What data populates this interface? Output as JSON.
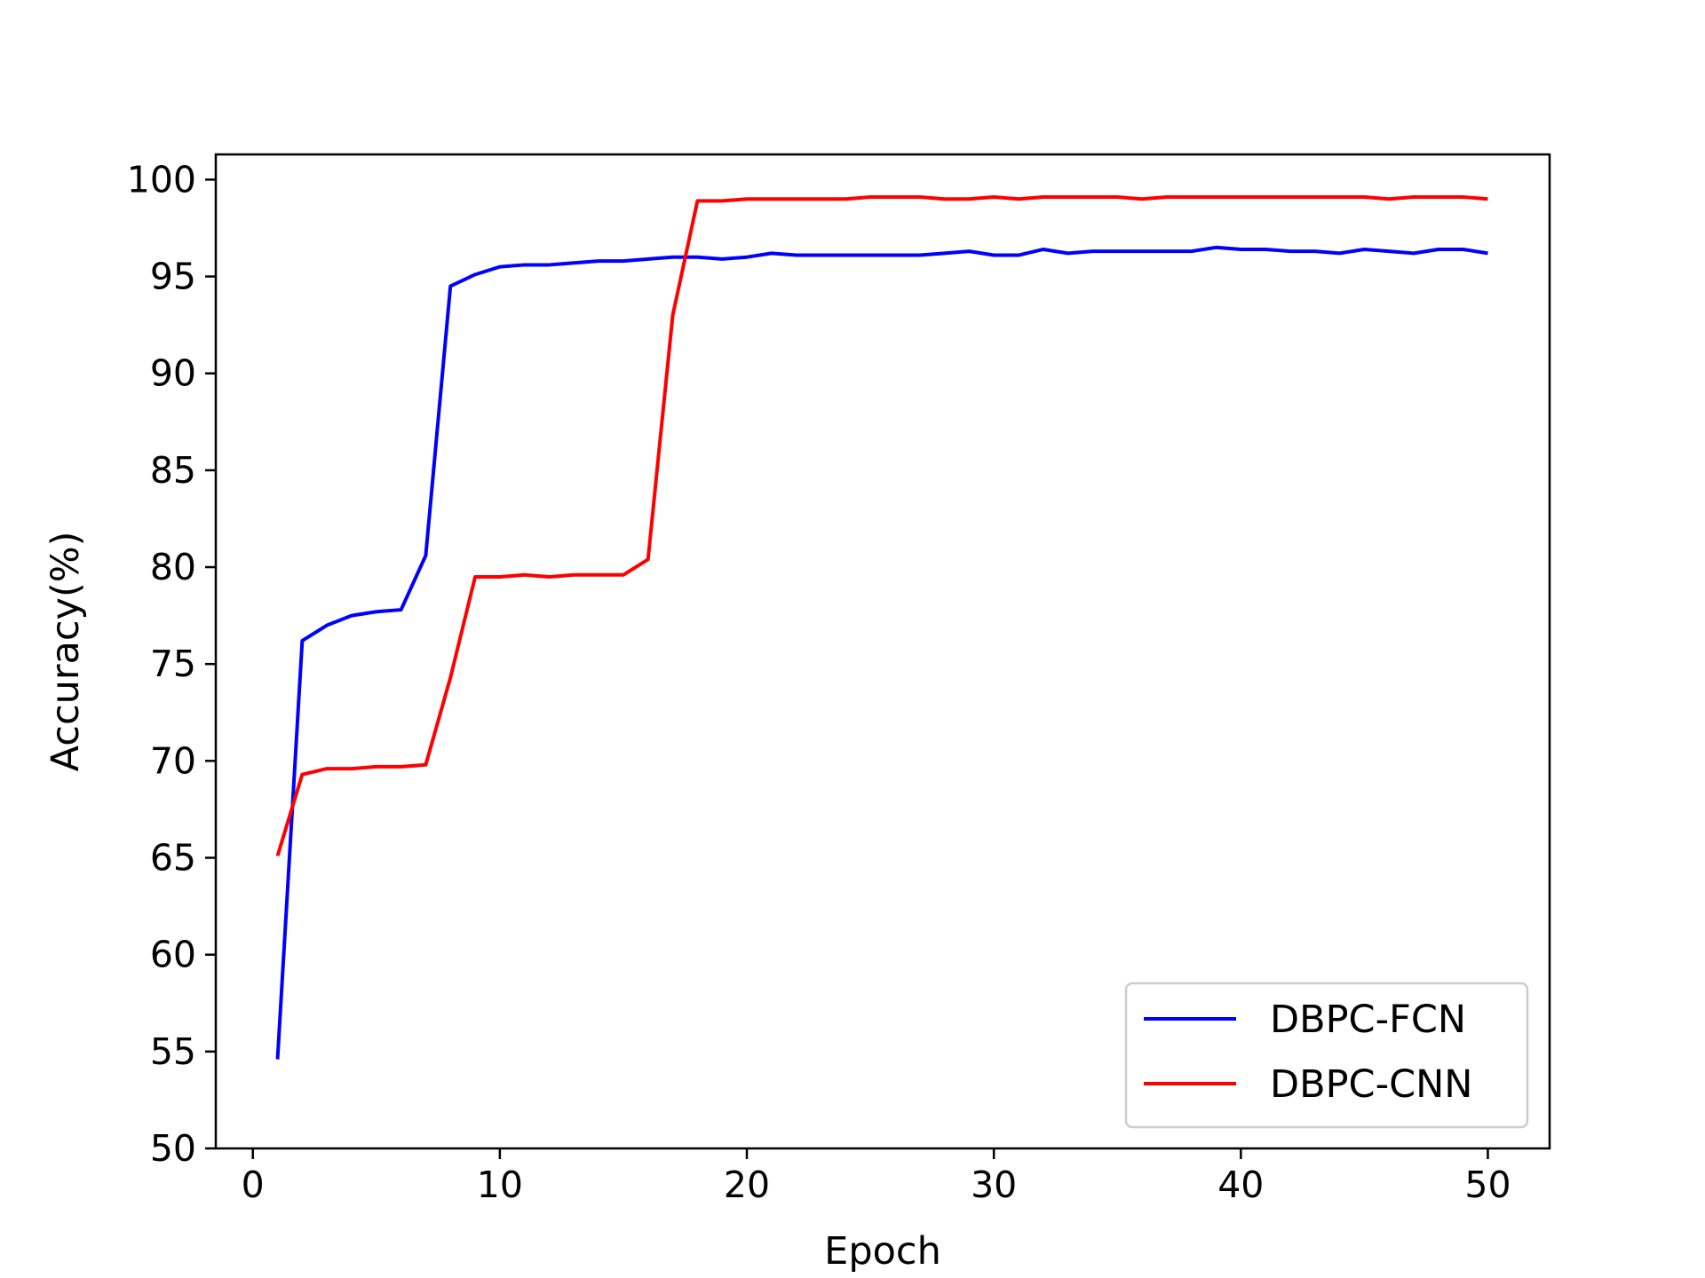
{
  "chart_data": {
    "type": "line",
    "title": "",
    "xlabel": "Epoch",
    "ylabel": "Accuracy(%)",
    "xlim": [
      -1.5,
      52.5
    ],
    "ylim": [
      50,
      101.3
    ],
    "xticks": [
      0,
      10,
      20,
      30,
      40,
      50
    ],
    "yticks": [
      50,
      55,
      60,
      65,
      70,
      75,
      80,
      85,
      90,
      95,
      100
    ],
    "grid": false,
    "legend_position": "bottom-right",
    "x": [
      1,
      2,
      3,
      4,
      5,
      6,
      7,
      8,
      9,
      10,
      11,
      12,
      13,
      14,
      15,
      16,
      17,
      18,
      19,
      20,
      21,
      22,
      23,
      24,
      25,
      26,
      27,
      28,
      29,
      30,
      31,
      32,
      33,
      34,
      35,
      36,
      37,
      38,
      39,
      40,
      41,
      42,
      43,
      44,
      45,
      46,
      47,
      48,
      49,
      50
    ],
    "series": [
      {
        "name": "DBPC-FCN",
        "color": "#0000ff",
        "values": [
          54.6,
          76.2,
          77.0,
          77.5,
          77.7,
          77.8,
          80.6,
          94.5,
          95.1,
          95.5,
          95.6,
          95.6,
          95.7,
          95.8,
          95.8,
          95.9,
          96.0,
          96.0,
          95.9,
          96.0,
          96.2,
          96.1,
          96.1,
          96.1,
          96.1,
          96.1,
          96.1,
          96.2,
          96.3,
          96.1,
          96.1,
          96.4,
          96.2,
          96.3,
          96.3,
          96.3,
          96.3,
          96.3,
          96.5,
          96.4,
          96.4,
          96.3,
          96.3,
          96.2,
          96.4,
          96.3,
          96.2,
          96.4,
          96.4,
          96.2
        ]
      },
      {
        "name": "DBPC-CNN",
        "color": "#ff0000",
        "values": [
          65.1,
          69.3,
          69.6,
          69.6,
          69.7,
          69.7,
          69.8,
          74.3,
          79.5,
          79.5,
          79.6,
          79.5,
          79.6,
          79.6,
          79.6,
          80.4,
          93.0,
          98.9,
          98.9,
          99.0,
          99.0,
          99.0,
          99.0,
          99.0,
          99.1,
          99.1,
          99.1,
          99.0,
          99.0,
          99.1,
          99.0,
          99.1,
          99.1,
          99.1,
          99.1,
          99.0,
          99.1,
          99.1,
          99.1,
          99.1,
          99.1,
          99.1,
          99.1,
          99.1,
          99.1,
          99.0,
          99.1,
          99.1,
          99.1,
          99.0
        ]
      }
    ]
  }
}
